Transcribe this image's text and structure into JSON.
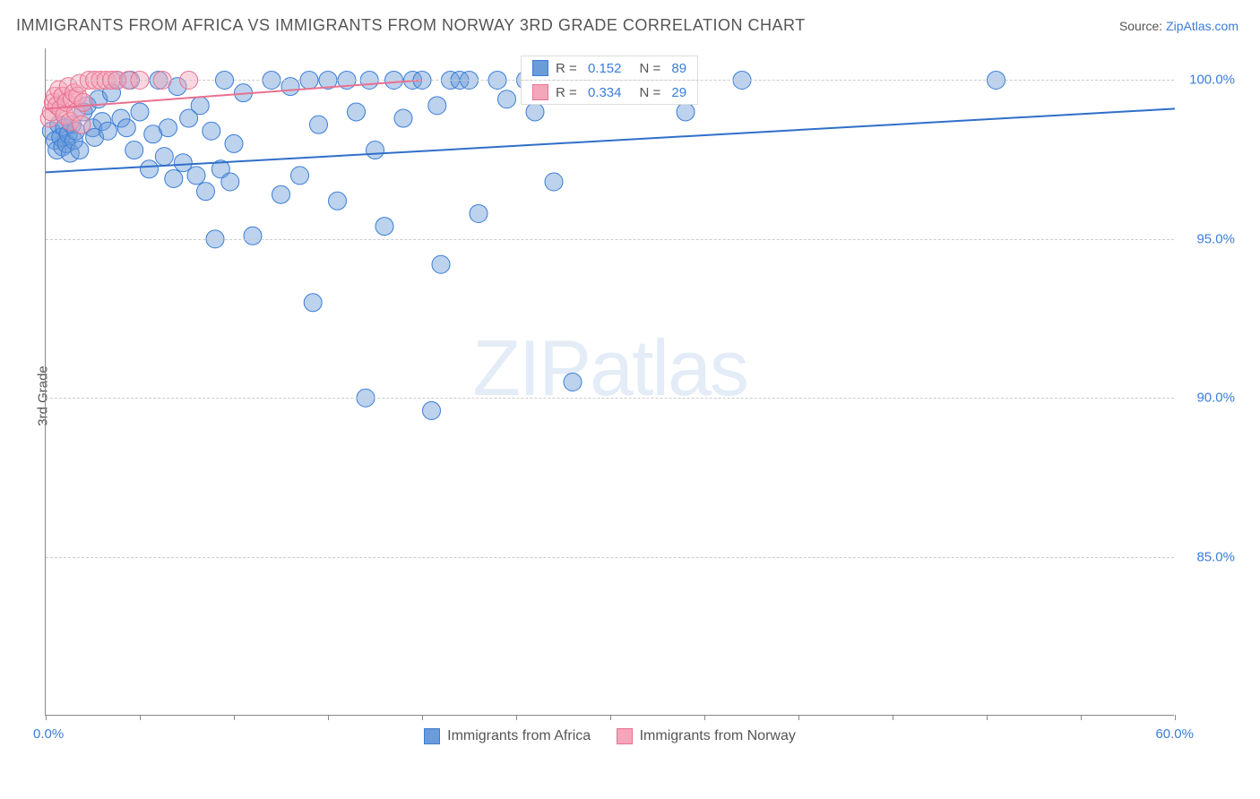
{
  "header": {
    "title": "IMMIGRANTS FROM AFRICA VS IMMIGRANTS FROM NORWAY 3RD GRADE CORRELATION CHART",
    "source_label": "Source:",
    "source_link": "ZipAtlas.com"
  },
  "chart": {
    "type": "scatter",
    "ylabel": "3rd Grade",
    "watermark": "ZIPatlas",
    "background_color": "#ffffff",
    "grid_color": "#cccccc",
    "axis_color": "#888888",
    "xlim": [
      0,
      60
    ],
    "ylim": [
      80,
      101
    ],
    "xticks": [
      0,
      5,
      10,
      15,
      20,
      25,
      30,
      35,
      40,
      45,
      50,
      55,
      60
    ],
    "xtick_labels": {
      "start": "0.0%",
      "end": "60.0%"
    },
    "yticks": [
      85,
      90,
      95,
      100
    ],
    "ytick_labels": [
      "85.0%",
      "90.0%",
      "95.0%",
      "100.0%"
    ],
    "marker_radius": 10,
    "marker_opacity": 0.45,
    "series": [
      {
        "name": "Immigrants from Africa",
        "color": "#6b9bd8",
        "stroke": "#3b7dd8",
        "R": "0.152",
        "N": "89",
        "trend": {
          "x1": 0,
          "y1": 97.1,
          "x2": 60,
          "y2": 99.1,
          "color": "#2f6fc9",
          "width": 2
        },
        "points": [
          [
            0.3,
            98.4
          ],
          [
            0.5,
            98.1
          ],
          [
            0.6,
            97.8
          ],
          [
            0.7,
            98.6
          ],
          [
            0.8,
            98.2
          ],
          [
            0.9,
            97.9
          ],
          [
            1.0,
            98.5
          ],
          [
            1.1,
            98.0
          ],
          [
            1.2,
            98.3
          ],
          [
            1.3,
            97.7
          ],
          [
            1.4,
            98.6
          ],
          [
            1.5,
            98.1
          ],
          [
            1.6,
            98.4
          ],
          [
            1.8,
            97.8
          ],
          [
            2.0,
            99.0
          ],
          [
            2.2,
            99.2
          ],
          [
            2.5,
            98.5
          ],
          [
            2.6,
            98.2
          ],
          [
            2.8,
            99.4
          ],
          [
            3.0,
            98.7
          ],
          [
            3.3,
            98.4
          ],
          [
            3.5,
            99.6
          ],
          [
            3.8,
            100.0
          ],
          [
            4.0,
            98.8
          ],
          [
            4.3,
            98.5
          ],
          [
            4.5,
            100.0
          ],
          [
            4.7,
            97.8
          ],
          [
            5.0,
            99.0
          ],
          [
            5.5,
            97.2
          ],
          [
            5.7,
            98.3
          ],
          [
            6.0,
            100.0
          ],
          [
            6.3,
            97.6
          ],
          [
            6.5,
            98.5
          ],
          [
            6.8,
            96.9
          ],
          [
            7.0,
            99.8
          ],
          [
            7.3,
            97.4
          ],
          [
            7.6,
            98.8
          ],
          [
            8.0,
            97.0
          ],
          [
            8.2,
            99.2
          ],
          [
            8.5,
            96.5
          ],
          [
            8.8,
            98.4
          ],
          [
            9.0,
            95.0
          ],
          [
            9.3,
            97.2
          ],
          [
            9.5,
            100.0
          ],
          [
            9.8,
            96.8
          ],
          [
            10.0,
            98.0
          ],
          [
            10.5,
            99.6
          ],
          [
            11.0,
            95.1
          ],
          [
            12.0,
            100.0
          ],
          [
            12.5,
            96.4
          ],
          [
            13.0,
            99.8
          ],
          [
            13.5,
            97.0
          ],
          [
            14.0,
            100.0
          ],
          [
            14.2,
            93.0
          ],
          [
            14.5,
            98.6
          ],
          [
            15.0,
            100.0
          ],
          [
            15.5,
            96.2
          ],
          [
            16.0,
            100.0
          ],
          [
            16.5,
            99.0
          ],
          [
            17.0,
            90.0
          ],
          [
            17.2,
            100.0
          ],
          [
            17.5,
            97.8
          ],
          [
            18.0,
            95.4
          ],
          [
            18.5,
            100.0
          ],
          [
            19.0,
            98.8
          ],
          [
            19.5,
            100.0
          ],
          [
            20.0,
            100.0
          ],
          [
            20.5,
            89.6
          ],
          [
            20.8,
            99.2
          ],
          [
            21.0,
            94.2
          ],
          [
            21.5,
            100.0
          ],
          [
            22.0,
            100.0
          ],
          [
            22.5,
            100.0
          ],
          [
            23.0,
            95.8
          ],
          [
            24.0,
            100.0
          ],
          [
            24.5,
            99.4
          ],
          [
            25.5,
            100.0
          ],
          [
            26.0,
            99.0
          ],
          [
            26.5,
            100.0
          ],
          [
            27.0,
            96.8
          ],
          [
            28.0,
            90.5
          ],
          [
            28.5,
            100.0
          ],
          [
            29.5,
            100.0
          ],
          [
            30.5,
            100.0
          ],
          [
            31.0,
            100.0
          ],
          [
            31.3,
            100.0
          ],
          [
            34.0,
            99.0
          ],
          [
            37.0,
            100.0
          ],
          [
            50.5,
            100.0
          ]
        ]
      },
      {
        "name": "Immigrants from Norway",
        "color": "#f4a6bb",
        "stroke": "#e8718f",
        "R": "0.334",
        "N": "29",
        "trend": {
          "x1": 0,
          "y1": 99.1,
          "x2": 20,
          "y2": 100.0,
          "color": "#e8718f",
          "width": 2
        },
        "points": [
          [
            0.2,
            98.8
          ],
          [
            0.3,
            99.0
          ],
          [
            0.4,
            99.3
          ],
          [
            0.5,
            99.5
          ],
          [
            0.6,
            99.2
          ],
          [
            0.7,
            99.7
          ],
          [
            0.8,
            99.1
          ],
          [
            0.9,
            99.5
          ],
          [
            1.0,
            98.9
          ],
          [
            1.1,
            99.3
          ],
          [
            1.2,
            99.8
          ],
          [
            1.3,
            98.7
          ],
          [
            1.4,
            99.4
          ],
          [
            1.5,
            99.6
          ],
          [
            1.6,
            99.0
          ],
          [
            1.7,
            99.5
          ],
          [
            1.8,
            99.9
          ],
          [
            1.9,
            98.6
          ],
          [
            2.0,
            99.3
          ],
          [
            2.3,
            100.0
          ],
          [
            2.6,
            100.0
          ],
          [
            2.9,
            100.0
          ],
          [
            3.2,
            100.0
          ],
          [
            3.5,
            100.0
          ],
          [
            3.8,
            100.0
          ],
          [
            4.4,
            100.0
          ],
          [
            5.0,
            100.0
          ],
          [
            6.2,
            100.0
          ],
          [
            7.6,
            100.0
          ]
        ]
      }
    ]
  },
  "legend_bottom": {
    "items": [
      "Immigrants from Africa",
      "Immigrants from Norway"
    ]
  }
}
